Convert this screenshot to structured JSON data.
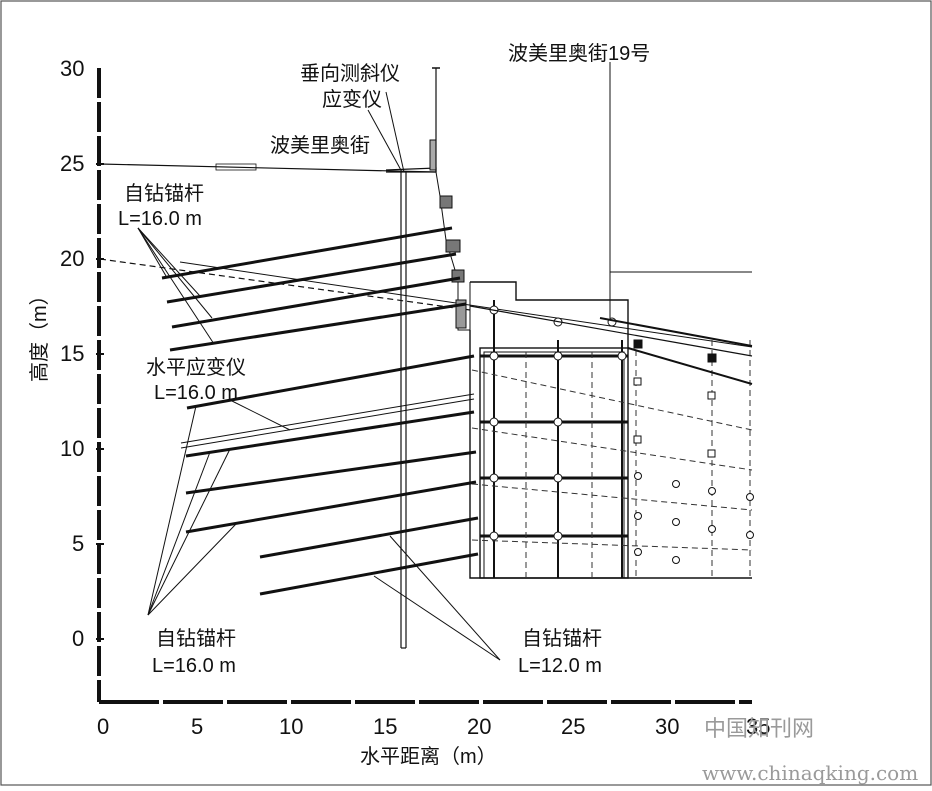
{
  "axes": {
    "y_ticks": [
      "30",
      "25",
      "20",
      "15",
      "10",
      "5",
      "0"
    ],
    "x_ticks": [
      "0",
      "5",
      "10",
      "15",
      "20",
      "25",
      "30",
      "35"
    ],
    "x_label": "水平距离（m）",
    "y_label": "高度（m）"
  },
  "labels": {
    "inclinometer": "垂向测斜仪",
    "strain_gauge": "应变仪",
    "street": "波美里奥街",
    "building": "波美里奥街19号",
    "anchor_top_name": "自钻锚杆",
    "anchor_top_len": "L=16.0 m",
    "horizontal_gauge_name": "水平应变仪",
    "horizontal_gauge_len": "L=16.0 m",
    "anchor_bl_name": "自钻锚杆",
    "anchor_bl_len": "L=16.0 m",
    "anchor_br_name": "自钻锚杆",
    "anchor_br_len": "L=12.0 m"
  },
  "watermark": {
    "cn": "中国知刊网",
    "url": "www.chinaqking.com"
  },
  "colors": {
    "line": "#111111",
    "dashed": "#333333",
    "frame": "#555555"
  }
}
